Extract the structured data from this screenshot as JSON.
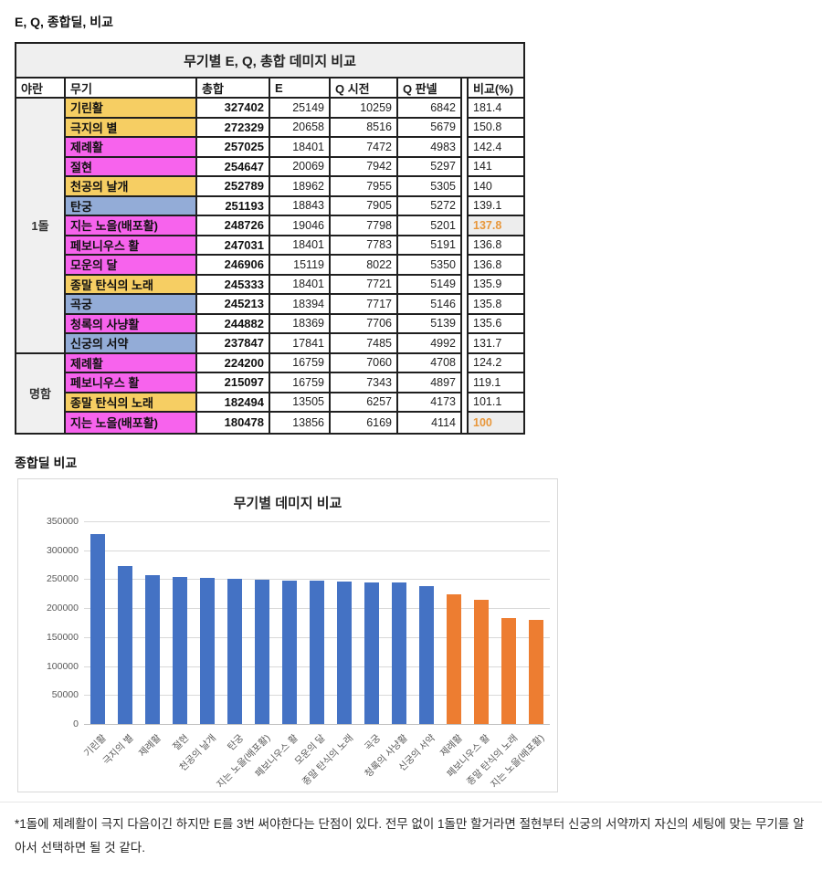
{
  "page": {
    "title": "E, Q, 종합딜, 비교",
    "section2_title": "종합딜 비교",
    "footnote": "*1돌에 제례활이 극지 다음이긴 하지만 E를 3번 써야한다는 단점이 있다. 전무 없이 1돌만 할거라면 절현부터 신궁의 서약까지 자신의 세팅에 맞는 무기를 알아서 선택하면 될 것 같다."
  },
  "colors": {
    "row_yellow": "#F6CE63",
    "row_magenta": "#F763ED",
    "row_blue": "#93ACD7",
    "group_bg": "#F0F0F0",
    "title_row_bg": "#EFEFEF",
    "highlight_bg": "#EDEDED",
    "highlight_text": "#E8973B",
    "bar_blue": "#4472C4",
    "bar_orange": "#ED7D31"
  },
  "table": {
    "title": "무기별 E, Q, 총합 데미지 비교",
    "headers": [
      "야란",
      "무기",
      "총합",
      "E",
      "Q 시전",
      "Q 판넬",
      "비교(%)"
    ],
    "groups": [
      {
        "label": "1돌",
        "rows": 13
      },
      {
        "label": "명함",
        "rows": 4
      }
    ],
    "rows": [
      {
        "weapon": "기린활",
        "color": "yellow",
        "total": "327402",
        "e": "25149",
        "q_cast": "10259",
        "q_panel": "6842",
        "compare": "181.4",
        "highlight": false
      },
      {
        "weapon": "극지의 별",
        "color": "yellow",
        "total": "272329",
        "e": "20658",
        "q_cast": "8516",
        "q_panel": "5679",
        "compare": "150.8",
        "highlight": false
      },
      {
        "weapon": "제례활",
        "color": "magenta",
        "total": "257025",
        "e": "18401",
        "q_cast": "7472",
        "q_panel": "4983",
        "compare": "142.4",
        "highlight": false
      },
      {
        "weapon": "절현",
        "color": "magenta",
        "total": "254647",
        "e": "20069",
        "q_cast": "7942",
        "q_panel": "5297",
        "compare": "141",
        "highlight": false
      },
      {
        "weapon": "천공의 날개",
        "color": "yellow",
        "total": "252789",
        "e": "18962",
        "q_cast": "7955",
        "q_panel": "5305",
        "compare": "140",
        "highlight": false
      },
      {
        "weapon": "탄궁",
        "color": "blue",
        "total": "251193",
        "e": "18843",
        "q_cast": "7905",
        "q_panel": "5272",
        "compare": "139.1",
        "highlight": false
      },
      {
        "weapon": "지는 노을(배포활)",
        "color": "magenta",
        "total": "248726",
        "e": "19046",
        "q_cast": "7798",
        "q_panel": "5201",
        "compare": "137.8",
        "highlight": true
      },
      {
        "weapon": "페보니우스 활",
        "color": "magenta",
        "total": "247031",
        "e": "18401",
        "q_cast": "7783",
        "q_panel": "5191",
        "compare": "136.8",
        "highlight": false
      },
      {
        "weapon": "모운의 달",
        "color": "magenta",
        "total": "246906",
        "e": "15119",
        "q_cast": "8022",
        "q_panel": "5350",
        "compare": "136.8",
        "highlight": false
      },
      {
        "weapon": "종말 탄식의 노래",
        "color": "yellow",
        "total": "245333",
        "e": "18401",
        "q_cast": "7721",
        "q_panel": "5149",
        "compare": "135.9",
        "highlight": false
      },
      {
        "weapon": "곡궁",
        "color": "blue",
        "total": "245213",
        "e": "18394",
        "q_cast": "7717",
        "q_panel": "5146",
        "compare": "135.8",
        "highlight": false
      },
      {
        "weapon": "청록의 사냥활",
        "color": "magenta",
        "total": "244882",
        "e": "18369",
        "q_cast": "7706",
        "q_panel": "5139",
        "compare": "135.6",
        "highlight": false
      },
      {
        "weapon": "신궁의 서약",
        "color": "blue",
        "total": "237847",
        "e": "17841",
        "q_cast": "7485",
        "q_panel": "4992",
        "compare": "131.7",
        "highlight": false
      },
      {
        "weapon": "제례활",
        "color": "magenta",
        "total": "224200",
        "e": "16759",
        "q_cast": "7060",
        "q_panel": "4708",
        "compare": "124.2",
        "highlight": false
      },
      {
        "weapon": "페보니우스 활",
        "color": "magenta",
        "total": "215097",
        "e": "16759",
        "q_cast": "7343",
        "q_panel": "4897",
        "compare": "119.1",
        "highlight": false
      },
      {
        "weapon": "종말 탄식의 노래",
        "color": "yellow",
        "total": "182494",
        "e": "13505",
        "q_cast": "6257",
        "q_panel": "4173",
        "compare": "101.1",
        "highlight": false
      },
      {
        "weapon": "지는 노을(배포활)",
        "color": "magenta",
        "total": "180478",
        "e": "13856",
        "q_cast": "6169",
        "q_panel": "4114",
        "compare": "100",
        "highlight": true
      }
    ]
  },
  "chart_data": {
    "type": "bar",
    "title": "무기별 데미지 비교",
    "categories": [
      "기린활",
      "극지의 별",
      "제례활",
      "절현",
      "천공의 날개",
      "탄궁",
      "지는 노을(배포활)",
      "페보니우스 활",
      "모운의 달",
      "종말 탄식의 노래",
      "곡궁",
      "청록의 사냥활",
      "신궁의 서약",
      "제례활",
      "페보니우스 활",
      "종말 탄식의 노래",
      "지는 노을(배포활)"
    ],
    "values": [
      327402,
      272329,
      257025,
      254647,
      252789,
      251193,
      248726,
      247031,
      246906,
      245333,
      245213,
      244882,
      237847,
      224200,
      215097,
      182494,
      180478
    ],
    "blue_count": 13,
    "xlabel": "",
    "ylabel": "",
    "ylim": [
      0,
      350000
    ],
    "ytick_step": 50000,
    "grid": true,
    "legend_position": "none"
  }
}
